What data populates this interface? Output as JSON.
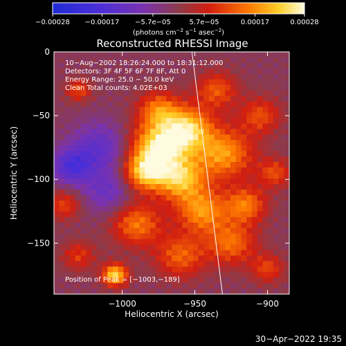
{
  "chart_data": {
    "type": "heatmap",
    "title": "Reconstructed RHESSI Image",
    "xlabel": "Heliocentric X (arcsec)",
    "ylabel": "Heliocentric Y (arcsec)",
    "xlim": [
      -1047,
      -885
    ],
    "ylim": [
      -190,
      0
    ],
    "x_ticks": [
      {
        "value": -1000,
        "label": "−1000"
      },
      {
        "value": -950,
        "label": "−950"
      },
      {
        "value": -900,
        "label": "−900"
      }
    ],
    "y_ticks": [
      {
        "value": 0,
        "label": "0"
      },
      {
        "value": -50,
        "label": "−50"
      },
      {
        "value": -100,
        "label": "−100"
      },
      {
        "value": -150,
        "label": "−150"
      }
    ],
    "colorbar": {
      "range": [
        -0.00028,
        0.00028
      ],
      "ticks": [
        {
          "value": -0.00028,
          "label": "−0.00028"
        },
        {
          "value": -0.00017,
          "label": "−0.00017"
        },
        {
          "value": -5.7e-05,
          "label": "−5.7e−05"
        },
        {
          "value": 5.7e-05,
          "label": "5.7e−05"
        },
        {
          "value": 0.00017,
          "label": "0.00017"
        },
        {
          "value": 0.00028,
          "label": "0.00028"
        }
      ],
      "units_label": "(photons cm",
      "units_sup1": "−2",
      "units_mid": " s",
      "units_sup2": "−1",
      "units_mid2": " asec",
      "units_sup3": "−2",
      "units_end": ")",
      "colormap": "blue-purple-red-yellow-white"
    },
    "annotations": [
      "10−Aug−2002 18:26:24.000 to 18:31:12.000",
      "Detectors: 3F 4F 5F 6F 7F 8F, Att 0",
      "Energy Range: 25.0 − 50.0 keV",
      "Clean     Total counts: 4.02E+03"
    ],
    "peak_label": "Position of Peak = [−1003,−189]",
    "peak": {
      "x": -1003,
      "y": -189
    },
    "limb_line": [
      {
        "x": -952,
        "y": 0
      },
      {
        "x": -931,
        "y": -190
      }
    ],
    "blobs": [
      {
        "x": -975,
        "y": -75,
        "amp": 0.00026,
        "w": 14
      },
      {
        "x": -955,
        "y": -60,
        "amp": 0.00022,
        "w": 12
      },
      {
        "x": -985,
        "y": -95,
        "amp": 0.0002,
        "w": 10
      },
      {
        "x": -960,
        "y": -100,
        "amp": 0.00021,
        "w": 12
      },
      {
        "x": -930,
        "y": -80,
        "amp": 0.00019,
        "w": 14
      },
      {
        "x": -945,
        "y": -125,
        "amp": 0.00018,
        "w": 12
      },
      {
        "x": -990,
        "y": -135,
        "amp": 0.00016,
        "w": 12
      },
      {
        "x": -915,
        "y": -120,
        "amp": 0.00016,
        "w": 10
      },
      {
        "x": -925,
        "y": -150,
        "amp": 0.00015,
        "w": 12
      },
      {
        "x": -1005,
        "y": -175,
        "amp": 0.00025,
        "w": 6
      },
      {
        "x": -960,
        "y": -160,
        "amp": 0.00014,
        "w": 12
      },
      {
        "x": -975,
        "y": -45,
        "amp": 0.00015,
        "w": 10
      },
      {
        "x": -935,
        "y": -30,
        "amp": 0.00013,
        "w": 10
      },
      {
        "x": -905,
        "y": -50,
        "amp": 0.00012,
        "w": 10
      },
      {
        "x": -1030,
        "y": -30,
        "amp": 0.00012,
        "w": 6
      },
      {
        "x": -1040,
        "y": -120,
        "amp": 0.00011,
        "w": 8
      },
      {
        "x": -1030,
        "y": -160,
        "amp": 0.0001,
        "w": 8
      },
      {
        "x": -895,
        "y": -95,
        "amp": 0.00012,
        "w": 8
      },
      {
        "x": -900,
        "y": -170,
        "amp": 0.00011,
        "w": 8
      },
      {
        "x": -1015,
        "y": -75,
        "amp": -0.00012,
        "w": 14
      },
      {
        "x": -1035,
        "y": -90,
        "amp": -0.00015,
        "w": 10
      },
      {
        "x": -1010,
        "y": -110,
        "amp": -0.0001,
        "w": 12
      }
    ]
  },
  "footer": {
    "timestamp": "30−Apr−2022 19:35"
  }
}
